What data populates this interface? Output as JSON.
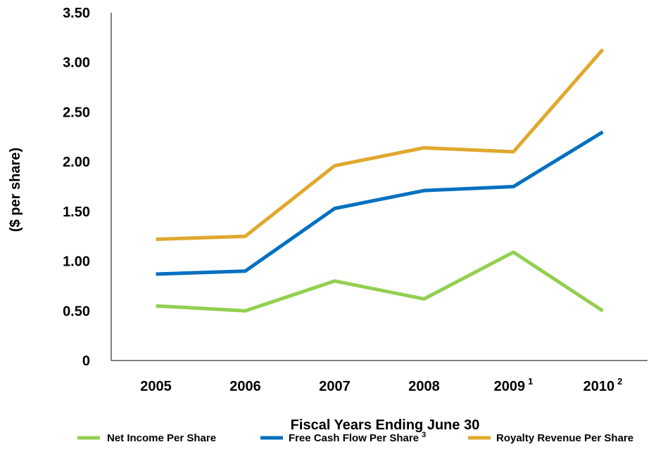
{
  "chart_data": {
    "type": "line",
    "title": "",
    "xlabel": "Fiscal Years Ending June 30",
    "ylabel": "($ per share)",
    "ylim": [
      0,
      3.5
    ],
    "grid": false,
    "legend_position": "bottom",
    "y_ticks": [
      "0",
      "0.50",
      "1.00",
      "1.50",
      "2.00",
      "2.50",
      "3.00",
      "3.50"
    ],
    "categories": [
      {
        "label": "2005",
        "sup": ""
      },
      {
        "label": "2006",
        "sup": ""
      },
      {
        "label": "2007",
        "sup": ""
      },
      {
        "label": "2008",
        "sup": ""
      },
      {
        "label": "2009",
        "sup": "1"
      },
      {
        "label": "2010",
        "sup": "2"
      }
    ],
    "series": [
      {
        "name": "Net Income Per Share",
        "sup": "",
        "color": "#92d050",
        "values": [
          0.55,
          0.5,
          0.8,
          0.62,
          1.09,
          0.5
        ]
      },
      {
        "name": "Free Cash Flow  Per Share",
        "sup": "3",
        "color": "#0070c0",
        "values": [
          0.87,
          0.9,
          1.53,
          1.71,
          1.75,
          2.3
        ]
      },
      {
        "name": "Royalty Revenue Per Share",
        "sup": "",
        "color": "#e0a82e",
        "values": [
          1.22,
          1.25,
          1.96,
          2.14,
          2.1,
          3.13
        ]
      }
    ]
  }
}
